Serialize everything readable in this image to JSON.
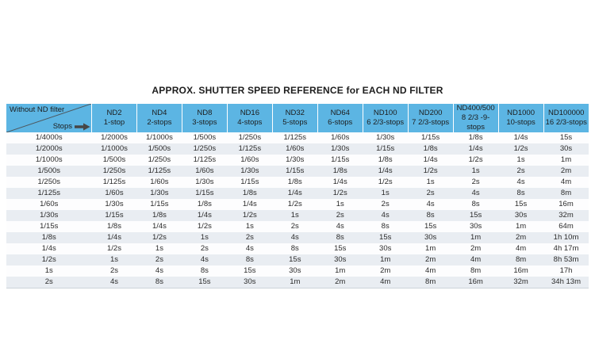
{
  "title": "APPROX. SHUTTER SPEED REFERENCE for EACH ND FILTER",
  "colors": {
    "header_bg": "#5cb5e3",
    "row_alt_bg": "#e9edf2",
    "arrow": "#474747",
    "diagonal_line": "#4d565c",
    "text": "#2b2b2b"
  },
  "chart_data": {
    "type": "table",
    "title": "APPROX. SHUTTER SPEED REFERENCE for EACH ND FILTER",
    "corner": {
      "without_label": "Without ND filter",
      "stops_label": "Stops",
      "arrow_icon": "right-arrow"
    },
    "columns": [
      {
        "name": "ND2",
        "stops": "1-stop"
      },
      {
        "name": "ND4",
        "stops": "2-stops"
      },
      {
        "name": "ND8",
        "stops": "3-stops"
      },
      {
        "name": "ND16",
        "stops": "4-stops"
      },
      {
        "name": "ND32",
        "stops": "5-stops"
      },
      {
        "name": "ND64",
        "stops": "6-stops"
      },
      {
        "name": "ND100",
        "stops": "6 2/3-stops"
      },
      {
        "name": "ND200",
        "stops": "7 2/3-stops"
      },
      {
        "name": "ND400/500",
        "stops": "8 2/3 -9-stops"
      },
      {
        "name": "ND1000",
        "stops": "10-stops"
      },
      {
        "name": "ND100000",
        "stops": "16 2/3-stops"
      }
    ],
    "rows": [
      [
        "1/4000s",
        "1/2000s",
        "1/1000s",
        "1/500s",
        "1/250s",
        "1/125s",
        "1/60s",
        "1/30s",
        "1/15s",
        "1/8s",
        "1/4s",
        "15s"
      ],
      [
        "1/2000s",
        "1/1000s",
        "1/500s",
        "1/250s",
        "1/125s",
        "1/60s",
        "1/30s",
        "1/15s",
        "1/8s",
        "1/4s",
        "1/2s",
        "30s"
      ],
      [
        "1/1000s",
        "1/500s",
        "1/250s",
        "1/125s",
        "1/60s",
        "1/30s",
        "1/15s",
        "1/8s",
        "1/4s",
        "1/2s",
        "1s",
        "1m"
      ],
      [
        "1/500s",
        "1/250s",
        "1/125s",
        "1/60s",
        "1/30s",
        "1/15s",
        "1/8s",
        "1/4s",
        "1/2s",
        "1s",
        "2s",
        "2m"
      ],
      [
        "1/250s",
        "1/125s",
        "1/60s",
        "1/30s",
        "1/15s",
        "1/8s",
        "1/4s",
        "1/2s",
        "1s",
        "2s",
        "4s",
        "4m"
      ],
      [
        "1/125s",
        "1/60s",
        "1/30s",
        "1/15s",
        "1/8s",
        "1/4s",
        "1/2s",
        "1s",
        "2s",
        "4s",
        "8s",
        "8m"
      ],
      [
        "1/60s",
        "1/30s",
        "1/15s",
        "1/8s",
        "1/4s",
        "1/2s",
        "1s",
        "2s",
        "4s",
        "8s",
        "15s",
        "16m"
      ],
      [
        "1/30s",
        "1/15s",
        "1/8s",
        "1/4s",
        "1/2s",
        "1s",
        "2s",
        "4s",
        "8s",
        "15s",
        "30s",
        "32m"
      ],
      [
        "1/15s",
        "1/8s",
        "1/4s",
        "1/2s",
        "1s",
        "2s",
        "4s",
        "8s",
        "15s",
        "30s",
        "1m",
        "64m"
      ],
      [
        "1/8s",
        "1/4s",
        "1/2s",
        "1s",
        "2s",
        "4s",
        "8s",
        "15s",
        "30s",
        "1m",
        "2m",
        "1h 10m"
      ],
      [
        "1/4s",
        "1/2s",
        "1s",
        "2s",
        "4s",
        "8s",
        "15s",
        "30s",
        "1m",
        "2m",
        "4m",
        "4h 17m"
      ],
      [
        "1/2s",
        "1s",
        "2s",
        "4s",
        "8s",
        "15s",
        "30s",
        "1m",
        "2m",
        "4m",
        "8m",
        "8h 53m"
      ],
      [
        "1s",
        "2s",
        "4s",
        "8s",
        "15s",
        "30s",
        "1m",
        "2m",
        "4m",
        "8m",
        "16m",
        "17h"
      ],
      [
        "2s",
        "4s",
        "8s",
        "15s",
        "30s",
        "1m",
        "2m",
        "4m",
        "8m",
        "16m",
        "32m",
        "34h 13m"
      ]
    ]
  }
}
